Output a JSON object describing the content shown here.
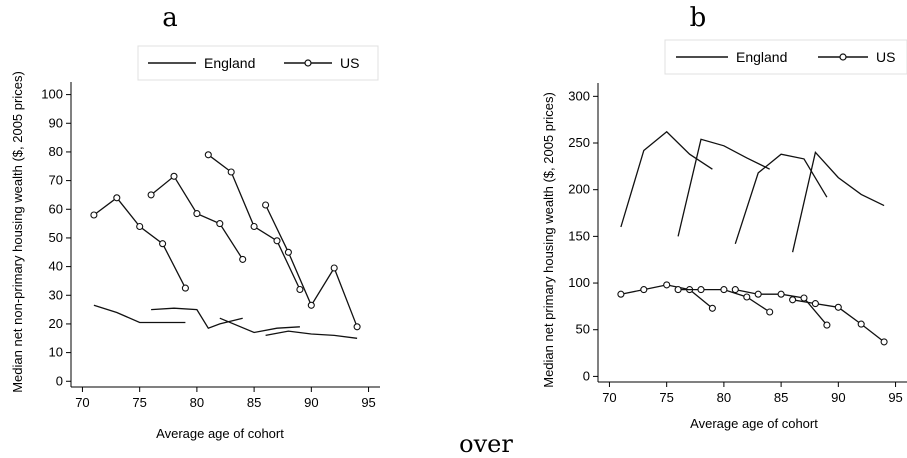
{
  "footer_text": "over",
  "chart_data": [
    {
      "panel": "a",
      "type": "line",
      "xlabel": "Average age of cohort",
      "ylabel": "Median net non-primary housing wealth ($, 2005 prices)",
      "xlim": [
        69,
        96
      ],
      "ylim": [
        -2,
        103
      ],
      "xticks": [
        70,
        75,
        80,
        85,
        90,
        95
      ],
      "yticks": [
        0,
        10,
        20,
        30,
        40,
        50,
        60,
        70,
        80,
        90,
        100
      ],
      "legend": [
        "England",
        "US"
      ],
      "legend_position": "top",
      "grid": false,
      "series": [
        {
          "name": "England",
          "marker": "none",
          "segments": [
            [
              [
                71,
                26.5
              ],
              [
                73,
                24
              ],
              [
                75,
                20.5
              ],
              [
                77,
                20.5
              ],
              [
                79,
                20.5
              ]
            ],
            [
              [
                76,
                25
              ],
              [
                78,
                25.5
              ],
              [
                80,
                25
              ],
              [
                81,
                18.5
              ],
              [
                82,
                20
              ],
              [
                84,
                22
              ]
            ],
            [
              [
                82,
                22
              ],
              [
                85,
                17
              ],
              [
                87,
                18.5
              ],
              [
                89,
                19
              ]
            ],
            [
              [
                86,
                16
              ],
              [
                88,
                17.5
              ],
              [
                90,
                16.5
              ],
              [
                92,
                16
              ],
              [
                94,
                15
              ]
            ]
          ]
        },
        {
          "name": "US",
          "marker": "circle",
          "segments": [
            [
              [
                71,
                58
              ],
              [
                73,
                64
              ],
              [
                75,
                54
              ],
              [
                77,
                48
              ],
              [
                79,
                32.5
              ]
            ],
            [
              [
                76,
                65
              ],
              [
                78,
                71.5
              ],
              [
                80,
                58.5
              ],
              [
                82,
                55
              ],
              [
                84,
                42.5
              ]
            ],
            [
              [
                81,
                79
              ],
              [
                83,
                73
              ],
              [
                85,
                54
              ],
              [
                87,
                49
              ],
              [
                89,
                32
              ]
            ],
            [
              [
                86,
                61.5
              ],
              [
                88,
                45
              ],
              [
                90,
                26.5
              ],
              [
                92,
                39.5
              ],
              [
                94,
                19
              ]
            ]
          ]
        }
      ]
    },
    {
      "panel": "b",
      "type": "line",
      "xlabel": "Average age of cohort",
      "ylabel": "Median net primary housing wealth ($, 2005 prices)",
      "xlim": [
        69,
        96
      ],
      "ylim": [
        -6,
        310
      ],
      "xticks": [
        70,
        75,
        80,
        85,
        90,
        95
      ],
      "yticks": [
        0,
        50,
        100,
        150,
        200,
        250,
        300
      ],
      "legend": [
        "England",
        "US"
      ],
      "legend_position": "top",
      "grid": false,
      "series": [
        {
          "name": "England",
          "marker": "none",
          "segments": [
            [
              [
                71,
                160
              ],
              [
                73,
                242
              ],
              [
                75,
                262
              ],
              [
                77,
                238
              ],
              [
                79,
                222
              ]
            ],
            [
              [
                76,
                150
              ],
              [
                78,
                254
              ],
              [
                80,
                247
              ],
              [
                82,
                234
              ],
              [
                84,
                222
              ]
            ],
            [
              [
                81,
                142
              ],
              [
                83,
                218
              ],
              [
                85,
                238
              ],
              [
                87,
                233
              ],
              [
                89,
                192
              ]
            ],
            [
              [
                86,
                133
              ],
              [
                88,
                240
              ],
              [
                90,
                213
              ],
              [
                92,
                195
              ],
              [
                94,
                183
              ]
            ]
          ]
        },
        {
          "name": "US",
          "marker": "circle",
          "segments": [
            [
              [
                71,
                88
              ],
              [
                73,
                93
              ],
              [
                75,
                98
              ],
              [
                77,
                93
              ],
              [
                79,
                73
              ]
            ],
            [
              [
                76,
                93
              ],
              [
                78,
                93
              ],
              [
                80,
                93
              ],
              [
                82,
                85
              ],
              [
                84,
                69
              ]
            ],
            [
              [
                81,
                93
              ],
              [
                83,
                88
              ],
              [
                85,
                88
              ],
              [
                87,
                84
              ],
              [
                89,
                55
              ]
            ],
            [
              [
                86,
                82
              ],
              [
                88,
                78
              ],
              [
                90,
                74
              ],
              [
                92,
                56
              ],
              [
                94,
                37
              ]
            ]
          ]
        }
      ]
    }
  ]
}
